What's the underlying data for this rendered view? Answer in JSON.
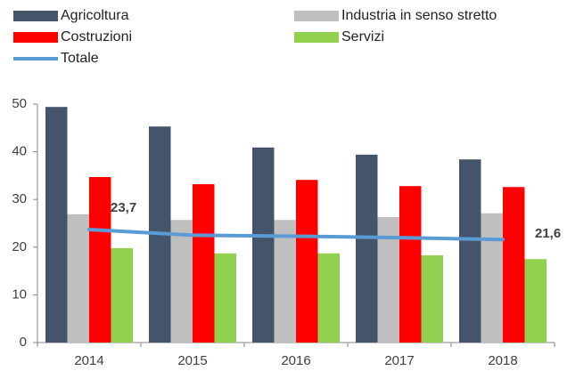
{
  "chart_data": {
    "type": "bar",
    "categories": [
      "2014",
      "2015",
      "2016",
      "2017",
      "2018"
    ],
    "series": [
      {
        "name": "Agricoltura",
        "color": "#44546a",
        "values": [
          49.4,
          45.3,
          40.9,
          39.4,
          38.4
        ]
      },
      {
        "name": "Industria in senso stretto",
        "color": "#bfbfbf",
        "values": [
          26.9,
          25.7,
          25.7,
          26.3,
          27.1
        ]
      },
      {
        "name": "Costruzioni",
        "color": "#ff0000",
        "values": [
          34.7,
          33.2,
          34.1,
          32.8,
          32.6
        ]
      },
      {
        "name": "Servizi",
        "color": "#92d050",
        "values": [
          19.8,
          18.7,
          18.7,
          18.3,
          17.5
        ]
      },
      {
        "name": "Totale",
        "type": "line",
        "color": "#5b9bd5",
        "values": [
          23.7,
          22.5,
          22.3,
          22.0,
          21.6
        ],
        "value_labels": [
          "23,7",
          null,
          null,
          null,
          "21,6"
        ]
      }
    ],
    "ylim": [
      0,
      50
    ],
    "yticks": [
      0,
      10,
      20,
      30,
      40,
      50
    ],
    "grid": false
  }
}
